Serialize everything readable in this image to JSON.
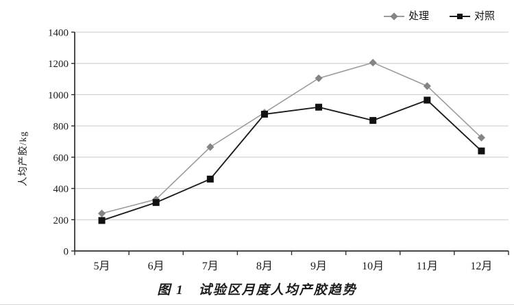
{
  "figure": {
    "caption": "图 1　试验区月度人均产胶趋势"
  },
  "chart_data": {
    "type": "line",
    "title": "图 1　试验区月度人均产胶趋势",
    "xlabel": "",
    "ylabel": "人均产胶/kg",
    "categories": [
      "5月",
      "6月",
      "7月",
      "8月",
      "9月",
      "10月",
      "11月",
      "12月"
    ],
    "series": [
      {
        "name": "处理",
        "marker": "diamond",
        "color": "#9b9b9b",
        "marker_color": "#848484",
        "values": [
          240,
          330,
          665,
          885,
          1105,
          1205,
          1055,
          725
        ]
      },
      {
        "name": "对照",
        "marker": "square",
        "color": "#1c1c1c",
        "marker_color": "#111111",
        "values": [
          195,
          310,
          460,
          875,
          920,
          835,
          965,
          640
        ]
      }
    ],
    "ylim": [
      0,
      1400
    ],
    "yticks": [
      0,
      200,
      400,
      600,
      800,
      1000,
      1200,
      1400
    ],
    "grid": true,
    "legend_position": "top-right"
  },
  "colors": {
    "grid": "#c9c9c9",
    "axis": "#2e2e2e",
    "text": "#1a1a1a",
    "background": "#ffffff"
  }
}
